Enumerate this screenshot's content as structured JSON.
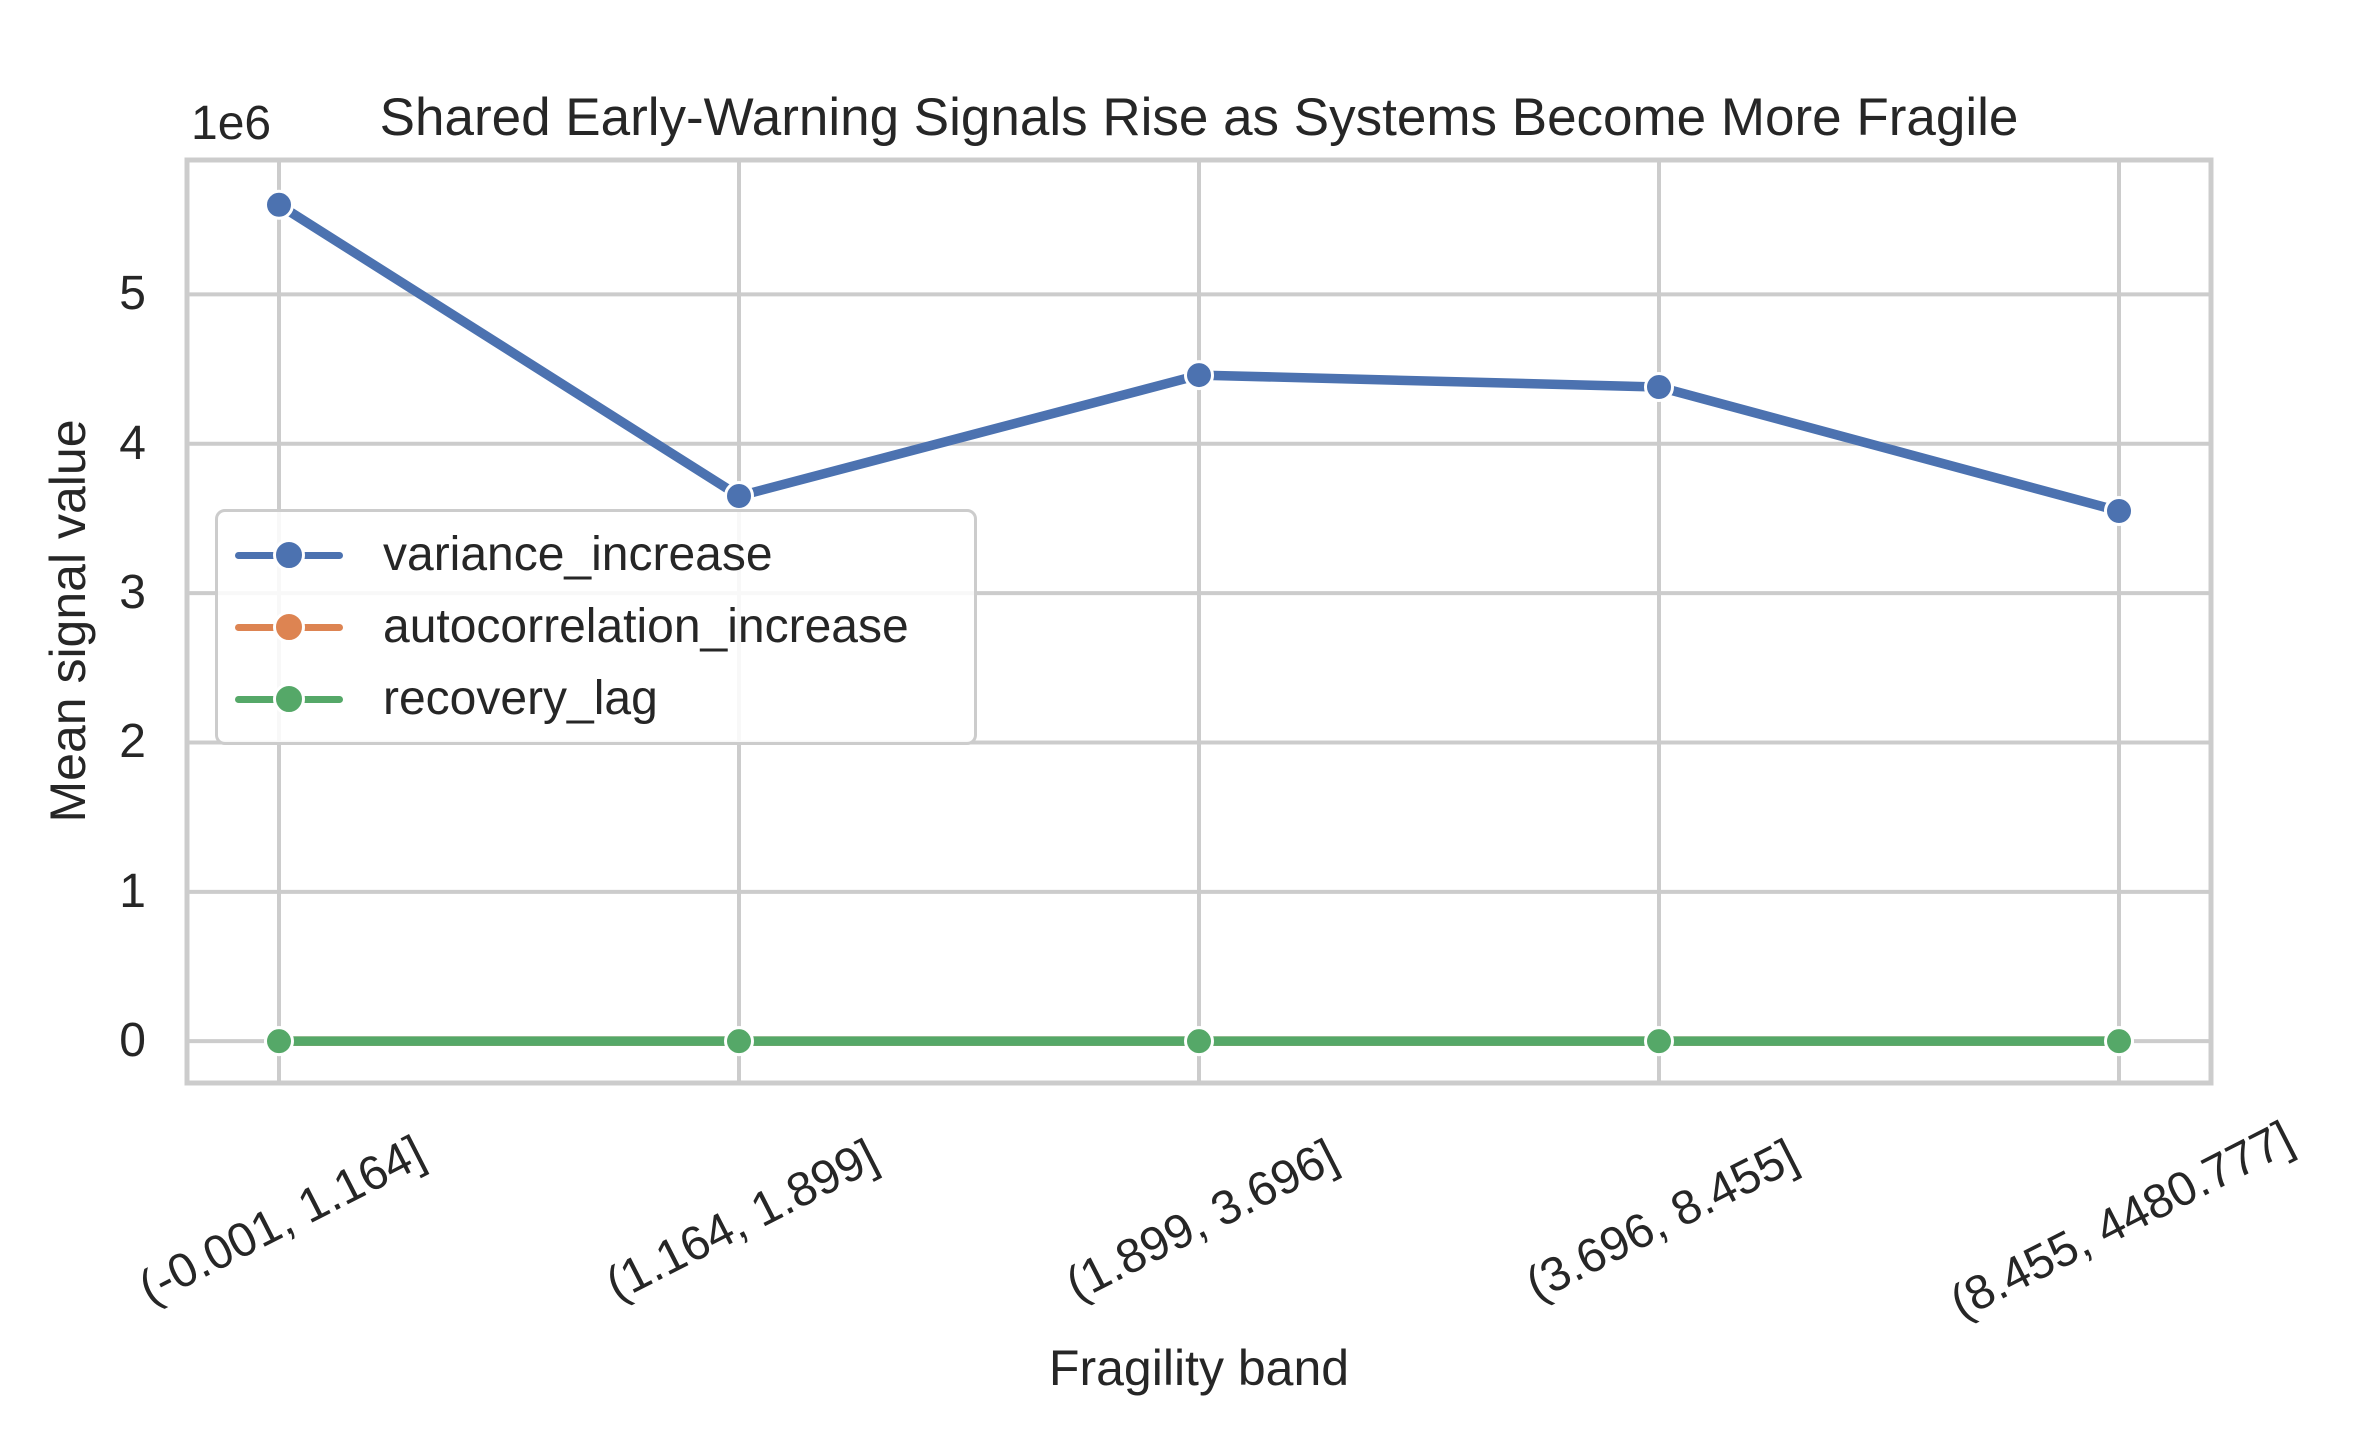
{
  "chart_data": {
    "type": "line",
    "title": "Shared Early-Warning Signals Rise as Systems Become More Fragile",
    "xlabel": "Fragility band",
    "ylabel": "Mean signal value",
    "y_offset_label": "1e6",
    "categories": [
      "(-0.001, 1.164]",
      "(1.164, 1.899]",
      "(1.899, 3.696]",
      "(3.696, 8.455]",
      "(8.455, 4480.777]"
    ],
    "series": [
      {
        "name": "variance_increase",
        "color": "#4C72B0",
        "marker": "o",
        "values": [
          5600000,
          3650000,
          4460000,
          4380000,
          3550000
        ]
      },
      {
        "name": "autocorrelation_increase",
        "color": "#DD8452",
        "marker": "o",
        "values": [
          0,
          0,
          0,
          0,
          0
        ]
      },
      {
        "name": "recovery_lag",
        "color": "#55A868",
        "marker": "o",
        "values": [
          0,
          0,
          0,
          0,
          0
        ]
      }
    ],
    "y_ticks": [
      0,
      1,
      2,
      3,
      4,
      5
    ],
    "y_tick_labels": [
      "0",
      "1",
      "2",
      "3",
      "4",
      "5"
    ],
    "y_tick_scale": 1000000,
    "ylim": [
      -280000,
      5900000
    ],
    "xlim": [
      -0.2,
      4.2
    ],
    "grid": true,
    "legend_position": "center left inside",
    "styling": {
      "grid_color": "#cccccc",
      "frame_color": "#cccccc",
      "text_color": "#262626",
      "background": "#ffffff"
    }
  }
}
